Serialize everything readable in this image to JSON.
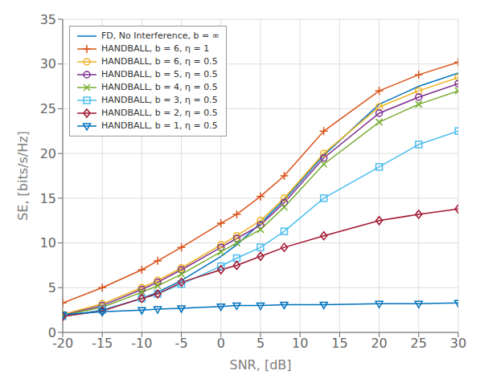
{
  "chart_data": {
    "type": "line",
    "x": [
      -20,
      -15,
      -10,
      -8,
      -5,
      0,
      2,
      5,
      8,
      13,
      20,
      25,
      30
    ],
    "series": [
      {
        "name": "FD, No Interference, b = ∞",
        "color": "#0072BD",
        "marker": "none",
        "line_style": "solid",
        "values": [
          1.8,
          2.5,
          3.8,
          4.5,
          5.8,
          8.5,
          9.8,
          12.2,
          14.8,
          19.8,
          25.5,
          27.5,
          29.0
        ]
      },
      {
        "name": "HANDBALL, b = 6, η = 1",
        "color": "#D95319",
        "marker": "plus",
        "line_style": "solid",
        "values": [
          3.3,
          5.0,
          7.0,
          8.0,
          9.5,
          12.2,
          13.2,
          15.2,
          17.5,
          22.5,
          27.0,
          28.8,
          30.2
        ]
      },
      {
        "name": "HANDBALL, b = 6, η = 0.5",
        "color": "#EDB120",
        "marker": "circle",
        "line_style": "solid",
        "values": [
          2.0,
          3.2,
          5.0,
          5.8,
          7.2,
          9.8,
          10.8,
          12.5,
          15.0,
          20.0,
          25.2,
          27.0,
          28.5
        ]
      },
      {
        "name": "HANDBALL, b = 5, η = 0.5",
        "color": "#7E2F8E",
        "marker": "circle",
        "line_style": "solid",
        "values": [
          1.9,
          3.0,
          4.8,
          5.6,
          7.0,
          9.5,
          10.5,
          12.0,
          14.5,
          19.5,
          24.5,
          26.3,
          27.8
        ]
      },
      {
        "name": "HANDBALL, b = 4, η = 0.5",
        "color": "#77AC30",
        "marker": "x",
        "line_style": "solid",
        "values": [
          1.9,
          2.8,
          4.5,
          5.2,
          6.5,
          9.0,
          10.0,
          11.5,
          14.0,
          18.8,
          23.5,
          25.5,
          27.0
        ]
      },
      {
        "name": "HANDBALL, b = 3, η = 0.5",
        "color": "#4DBEEE",
        "marker": "square",
        "line_style": "solid",
        "values": [
          1.8,
          2.5,
          3.8,
          4.3,
          5.4,
          7.4,
          8.3,
          9.5,
          11.3,
          15.0,
          18.5,
          21.0,
          22.5
        ]
      },
      {
        "name": "HANDBALL, b = 2, η = 0.5",
        "color": "#A2142F",
        "marker": "diamond",
        "line_style": "solid",
        "values": [
          1.8,
          2.4,
          3.8,
          4.3,
          5.6,
          7.0,
          7.5,
          8.5,
          9.5,
          10.8,
          12.5,
          13.2,
          13.8
        ]
      },
      {
        "name": "HANDBALL, b = 1, η = 0.5",
        "color": "#0072BD",
        "marker": "triangle-down",
        "line_style": "solid",
        "values": [
          2.0,
          2.3,
          2.5,
          2.6,
          2.7,
          2.9,
          3.0,
          3.0,
          3.1,
          3.1,
          3.2,
          3.2,
          3.3
        ]
      }
    ],
    "xlabel": "SNR, [dB]",
    "ylabel": "SE, [bits/s/Hz]",
    "xlim": [
      -20,
      30
    ],
    "ylim": [
      0,
      35
    ],
    "xticks": [
      -20,
      -15,
      -10,
      -5,
      0,
      5,
      10,
      15,
      20,
      25,
      30
    ],
    "yticks": [
      0,
      5,
      10,
      15,
      20,
      25,
      30,
      35
    ],
    "grid": true,
    "legend": "upper left"
  }
}
